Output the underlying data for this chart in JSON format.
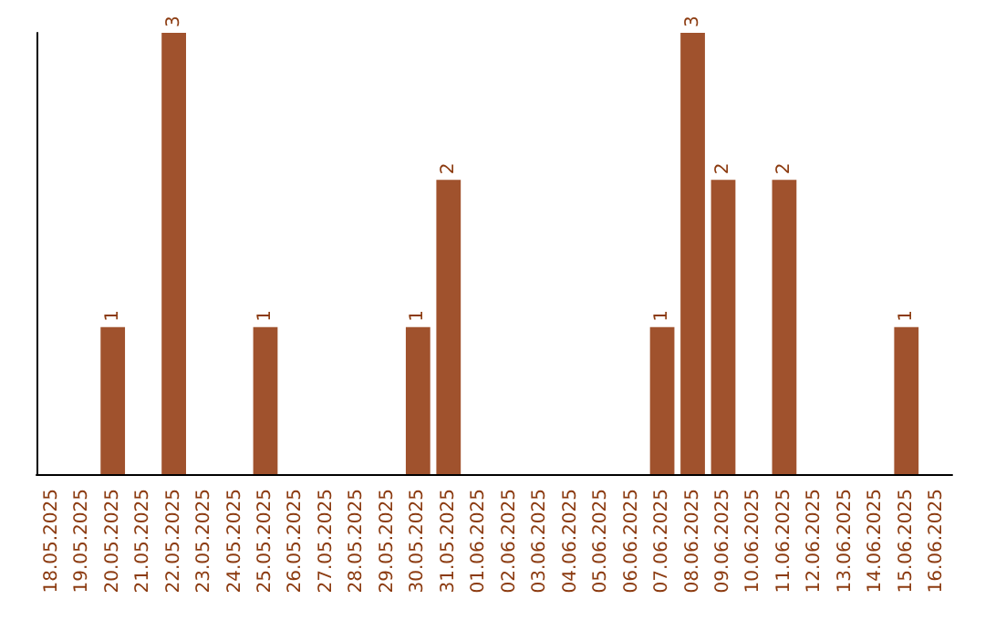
{
  "chart_data": {
    "type": "bar",
    "categories": [
      "18.05.2025",
      "19.05.2025",
      "20.05.2025",
      "21.05.2025",
      "22.05.2025",
      "23.05.2025",
      "24.05.2025",
      "25.05.2025",
      "26.05.2025",
      "27.05.2025",
      "28.05.2025",
      "29.05.2025",
      "30.05.2025",
      "31.05.2025",
      "01.06.2025",
      "02.06.2025",
      "03.06.2025",
      "04.06.2025",
      "05.06.2025",
      "06.06.2025",
      "07.06.2025",
      "08.06.2025",
      "09.06.2025",
      "10.06.2025",
      "11.06.2025",
      "12.06.2025",
      "13.06.2025",
      "14.06.2025",
      "15.06.2025",
      "16.06.2025"
    ],
    "values": [
      null,
      null,
      1,
      null,
      3,
      null,
      null,
      1,
      null,
      null,
      null,
      null,
      1,
      2,
      null,
      null,
      null,
      null,
      null,
      null,
      1,
      3,
      2,
      null,
      2,
      null,
      null,
      null,
      1,
      null
    ],
    "color": "#a0522d",
    "data_labels": true,
    "tick_labels": "x"
  }
}
